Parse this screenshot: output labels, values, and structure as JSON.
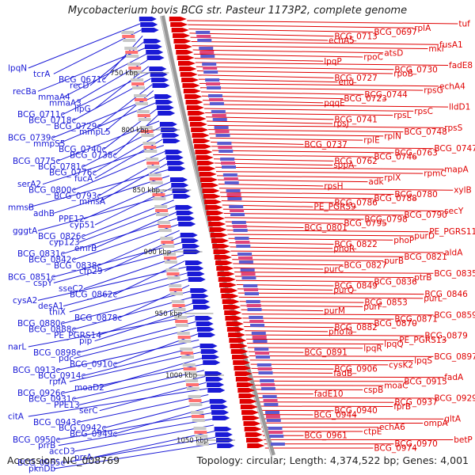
{
  "title": "Mycobacterium bovis BCG str. Pasteur 1173P2, complete genome",
  "accession": "Accession: NC_008769",
  "summary": "Topology: circular; Length: 4,374,522 bp; Genes: 4,001",
  "colors": {
    "reverse": "#1a1ad6",
    "forward": "#e00000",
    "backbone": "#999999"
  },
  "ticks": [
    "750 kbp",
    "800 kbp",
    "850 kbp",
    "900 kbp",
    "950 kbp",
    "1000 kbp",
    "1050 kbp"
  ],
  "left_labels": [
    "lpqN",
    "tcrA",
    "BCG_0671c",
    "recD",
    "recBa",
    "mmaA4",
    "mmaA3",
    "lipG",
    "BCG_0711c",
    "BCG_0718c",
    "BCG_0729c",
    "mmpL5",
    "BCG_0739c",
    "mmpS5",
    "BCG_0740c",
    "BCG_0738c",
    "BCG_0775c",
    "BCG_0781c",
    "BCG_0776c",
    "fucA",
    "serA2",
    "BCG_0800c",
    "BCG_0793c",
    "mmsA",
    "mmsB",
    "adhB",
    "PPE12",
    "cyp51",
    "gggtA",
    "BCG_0826c",
    "cyp123",
    "emrB",
    "BCG_0831c",
    "BCG_0842c",
    "BCG_0838c",
    "cfp29",
    "BCG_0851c",
    "cspY",
    "sseC2",
    "BCG_0862c",
    "cysA2",
    "desA1",
    "thiX",
    "BCG_0878c",
    "BCG_0880c",
    "BCG_0888c",
    "PE_PGRS14",
    "pip",
    "narL",
    "BCG_0898c",
    "pdc",
    "BCG_0910c",
    "BCG_0913c",
    "BCG_0914c",
    "rpfA",
    "moaD2",
    "BCG_0926c",
    "BCG_0931c",
    "PPE13",
    "serC",
    "citA",
    "BCG_0943c",
    "BCG_0942c",
    "BCG_0949c",
    "BCG_0950c",
    "prrB",
    "accD3",
    "prrA",
    "BCG_0965c",
    "pknDb"
  ],
  "right_labels": [
    "tuf",
    "rplA",
    "BCG_0697",
    "BCG_0713",
    "echA5",
    "fusA1",
    "mkl",
    "atsD",
    "rpoC",
    "lpqP",
    "fadE8",
    "BCG_0730",
    "rpoB",
    "BCG_0727",
    "end",
    "echA4",
    "rpsG",
    "BCG_0744",
    "BCG_0723",
    "pqqE",
    "lldD1",
    "rpsC",
    "rpsL",
    "BCG_0741",
    "rpsJ",
    "rpsS",
    "BCG_0748",
    "rplN",
    "rplE",
    "BCG_0737",
    "BCG_0747",
    "BCG_0763",
    "BCG_0746",
    "BCG_0762",
    "sppA",
    "mapA",
    "rpmC",
    "rplX",
    "adk",
    "rpsH",
    "xylB",
    "BCG_0780",
    "BCG_0788",
    "BCG_0786",
    "PE_PGRS9",
    "secY",
    "BCG_0790",
    "BCG_0798",
    "BCG_0795",
    "BCG_0801",
    "PE_PGRS11",
    "purD",
    "phoP",
    "BCG_0822",
    "phoR",
    "aldA",
    "BCG_0821",
    "purB",
    "BCG_0827",
    "purC",
    "BCG_0835",
    "ptrB",
    "BCG_0836",
    "BCG_0849",
    "purQ",
    "BCG_0846",
    "purL",
    "BCG_0853",
    "purF",
    "purM",
    "BCG_0859",
    "BCG_0871",
    "BCG_0870",
    "BCG_0882",
    "phoTa",
    "BCG_0879",
    "PE_PGRS13",
    "lpqQ",
    "lpqR",
    "BCG_0891",
    "BCG_0897",
    "lpqS",
    "cysK2",
    "BCG_0906",
    "fadB",
    "fadA",
    "BCG_0915",
    "moaC",
    "cspB",
    "fadE10",
    "BCG_0929",
    "BCG_0937",
    "fprB",
    "BCG_0940",
    "BCG_0944",
    "gltA",
    "ompA",
    "echA6",
    "ctpE",
    "BCG_0961",
    "betP",
    "BCG_0970",
    "BCG_0974"
  ]
}
